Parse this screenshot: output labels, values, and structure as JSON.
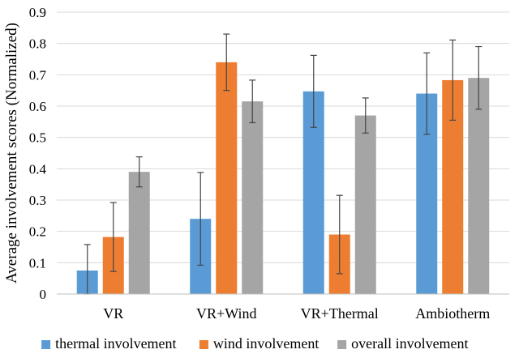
{
  "chart_data": {
    "type": "bar",
    "title": "",
    "xlabel": "",
    "ylabel": "Average involvement scores (Normalized)",
    "ylim": [
      0,
      0.9
    ],
    "yticks": [
      "0",
      "0.1",
      "0.2",
      "0.3",
      "0.4",
      "0.5",
      "0.6",
      "0.7",
      "0.8",
      "0.9"
    ],
    "grid": "horizontal",
    "legend_position": "bottom",
    "categories": [
      "VR",
      "VR+Wind",
      "VR+Thermal",
      "Ambiotherm"
    ],
    "series": [
      {
        "name": "thermal involvement",
        "color": "#5b9bd5",
        "values": [
          0.075,
          0.24,
          0.647,
          0.64
        ],
        "error": [
          0.083,
          0.148,
          0.115,
          0.13
        ]
      },
      {
        "name": "wind involvement",
        "color": "#ed7d31",
        "values": [
          0.182,
          0.74,
          0.19,
          0.683
        ],
        "error": [
          0.11,
          0.09,
          0.125,
          0.128
        ]
      },
      {
        "name": "overall involvement",
        "color": "#a5a5a5",
        "values": [
          0.39,
          0.615,
          0.57,
          0.69
        ],
        "error": [
          0.048,
          0.068,
          0.056,
          0.1
        ]
      }
    ]
  }
}
